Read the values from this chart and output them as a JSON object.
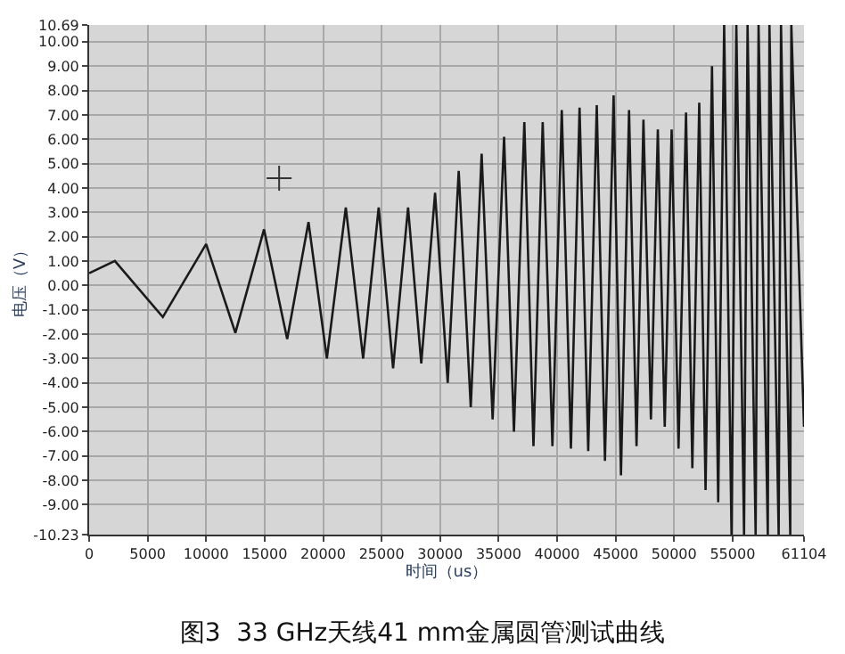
{
  "chart_data": {
    "type": "line",
    "title": "图3  33 GHz天线41 mm金属圆管测试曲线",
    "xlabel": "时间（us）",
    "ylabel": "电压（V）",
    "xlim": [
      0,
      61104
    ],
    "ylim": [
      -10.23,
      10.69
    ],
    "xticks": [
      0,
      5000,
      10000,
      15000,
      20000,
      25000,
      30000,
      35000,
      40000,
      45000,
      50000,
      55000,
      61104
    ],
    "yticks": [
      {
        "value": 10.69,
        "label": "10.69"
      },
      {
        "value": 10,
        "label": "10.00"
      },
      {
        "value": 9,
        "label": "9.00"
      },
      {
        "value": 8,
        "label": "8.00"
      },
      {
        "value": 7,
        "label": "7.00"
      },
      {
        "value": 6,
        "label": "6.00"
      },
      {
        "value": 5,
        "label": "5.00"
      },
      {
        "value": 4,
        "label": "4.00"
      },
      {
        "value": 3,
        "label": "3.00"
      },
      {
        "value": 2,
        "label": "2.00"
      },
      {
        "value": 1,
        "label": "1.00"
      },
      {
        "value": 0,
        "label": "0.00"
      },
      {
        "value": -1,
        "label": "-1.00"
      },
      {
        "value": -2,
        "label": "-2.00"
      },
      {
        "value": -3,
        "label": "-3.00"
      },
      {
        "value": -4,
        "label": "-4.00"
      },
      {
        "value": -5,
        "label": "-5.00"
      },
      {
        "value": -6,
        "label": "-6.00"
      },
      {
        "value": -7,
        "label": "-7.00"
      },
      {
        "value": -8,
        "label": "-8.00"
      },
      {
        "value": -9,
        "label": "-9.00"
      },
      {
        "value": -10.23,
        "label": "-10.23"
      }
    ],
    "grid": true,
    "series": [
      {
        "color": "#1a1a1a",
        "line_style": "solid",
        "marker": "none",
        "x": [
          0,
          2200,
          6300,
          10000,
          12500,
          14950,
          16930,
          18750,
          20320,
          21940,
          23420,
          24750,
          25980,
          27260,
          28390,
          29570,
          30650,
          31590,
          32620,
          33550,
          34490,
          35470,
          36310,
          37200,
          37980,
          38770,
          39600,
          40400,
          41180,
          41920,
          42660,
          43390,
          44090,
          44830,
          45460,
          46150,
          46790,
          47380,
          48020,
          48610,
          49200,
          49790,
          50380,
          51020,
          51560,
          52150,
          52690,
          53240,
          53770,
          54280,
          54910,
          55320,
          55980,
          56280,
          56970,
          57220,
          58010,
          58150,
          58940,
          59140,
          59930,
          60020,
          61104
        ],
        "values": [
          0.5,
          1.0,
          -1.3,
          1.7,
          -1.95,
          2.3,
          -2.2,
          2.6,
          -3.0,
          3.2,
          -3.0,
          3.2,
          -3.4,
          3.2,
          -3.2,
          3.8,
          -4.0,
          4.7,
          -5.0,
          5.4,
          -5.5,
          6.1,
          -6.0,
          6.7,
          -6.6,
          6.7,
          -6.6,
          7.2,
          -6.7,
          7.3,
          -6.8,
          7.4,
          -7.2,
          7.8,
          -7.8,
          7.2,
          -6.6,
          6.8,
          -5.5,
          6.4,
          -5.8,
          6.4,
          -6.7,
          7.1,
          -7.5,
          7.5,
          -8.4,
          9.0,
          -8.9,
          10.69,
          -10.23,
          10.69,
          -10.23,
          10.69,
          -10.23,
          10.69,
          -10.23,
          10.69,
          -10.23,
          10.69,
          -10.23,
          10.69,
          -5.8
        ]
      },
      {
        "type": "scatter",
        "color": "#333333",
        "marker": "cross",
        "x": [
          16240
        ],
        "values": [
          4.4
        ]
      }
    ]
  }
}
